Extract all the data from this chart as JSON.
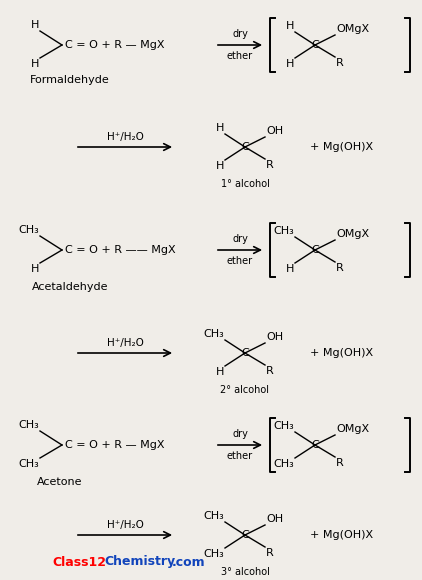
{
  "bg_color": "#f0ede8",
  "text_color": "#000000",
  "sections": [
    {
      "type": "reaction",
      "left1": "H",
      "left2": "H",
      "main": "C = O + R — MgX",
      "arrow_label": "dry\nether",
      "prod_left1": "H",
      "prod_left2": "H",
      "prod_right1": "OMgX",
      "prod_right2": "R",
      "bracket": true,
      "name": "Formaldehyde"
    },
    {
      "type": "hydrolysis",
      "arrow_label": "H⁺/H₂O",
      "prod_left1": "H",
      "prod_left2": "H",
      "prod_right1": "OH",
      "prod_right2": "R",
      "degree": "1° alcohol"
    },
    {
      "type": "reaction",
      "left1": "CH₃",
      "left2": "H",
      "main": "C = O + R —— MgX",
      "arrow_label": "dry\nether",
      "prod_left1": "CH₃",
      "prod_left2": "H",
      "prod_right1": "OMgX",
      "prod_right2": "R",
      "bracket": true,
      "name": "Acetaldehyde"
    },
    {
      "type": "hydrolysis",
      "arrow_label": "H⁺/H₂O",
      "prod_left1": "CH₃",
      "prod_left2": "H",
      "prod_right1": "OH",
      "prod_right2": "R",
      "degree": "2° alcohol"
    },
    {
      "type": "reaction",
      "left1": "CH₃",
      "left2": "CH₃",
      "main": "C = O + R — MgX",
      "arrow_label": "dry\nether",
      "prod_left1": "CH₃",
      "prod_left2": "CH₃",
      "prod_right1": "OMgX",
      "prod_right2": "R",
      "bracket": true,
      "name": "Acetone"
    },
    {
      "type": "hydrolysis",
      "arrow_label": "H⁺/H₂O",
      "prod_left1": "CH₃",
      "prod_left2": "CH₃",
      "prod_right1": "OH",
      "prod_right2": "R",
      "degree": "3° alcohol"
    }
  ],
  "wm1": "Class12",
  "wm2": "Chemistry",
  "wm3": ".com"
}
